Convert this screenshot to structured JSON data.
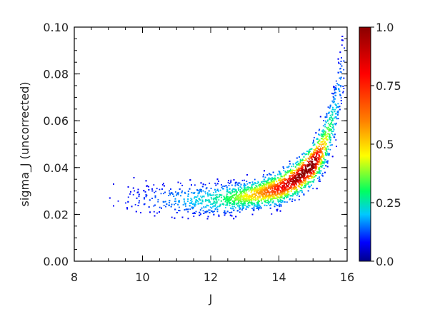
{
  "chart_data": {
    "type": "heatmap",
    "title": "",
    "xlabel": "J",
    "ylabel": "sigma_J (uncorrected)",
    "xlim": [
      8,
      16
    ],
    "ylim": [
      0.0,
      0.1
    ],
    "x_ticks": [
      "8",
      "10",
      "12",
      "14",
      "16"
    ],
    "y_ticks": [
      "0.00",
      "0.02",
      "0.04",
      "0.06",
      "0.08",
      "0.10"
    ],
    "colorbar": {
      "range": [
        0.0,
        1.0
      ],
      "tick_labels": [
        "1.0",
        "0.75",
        "0.5",
        "0.25",
        "0.0"
      ],
      "tick_values": [
        1.0,
        0.75,
        0.5,
        0.25,
        0.0
      ]
    },
    "density_ridge": {
      "x": [
        9.0,
        10.0,
        11.0,
        12.0,
        12.5,
        13.0,
        13.5,
        14.0,
        14.5,
        15.0,
        15.3,
        15.6,
        15.9
      ],
      "y": [
        0.026,
        0.0265,
        0.0265,
        0.0265,
        0.027,
        0.028,
        0.0295,
        0.0315,
        0.0355,
        0.042,
        0.049,
        0.062,
        0.085
      ],
      "width": [
        0.008,
        0.008,
        0.008,
        0.008,
        0.0075,
        0.007,
        0.0075,
        0.008,
        0.0085,
        0.01,
        0.012,
        0.015,
        0.02
      ],
      "density": [
        0.02,
        0.06,
        0.14,
        0.24,
        0.34,
        0.48,
        0.62,
        0.78,
        0.92,
        1.0,
        0.55,
        0.22,
        0.06
      ]
    },
    "colorscale": [
      "#00008b",
      "#0000ff",
      "#00c8ff",
      "#00ff60",
      "#ffff00",
      "#ff8000",
      "#ff0000",
      "#8b0000"
    ]
  }
}
